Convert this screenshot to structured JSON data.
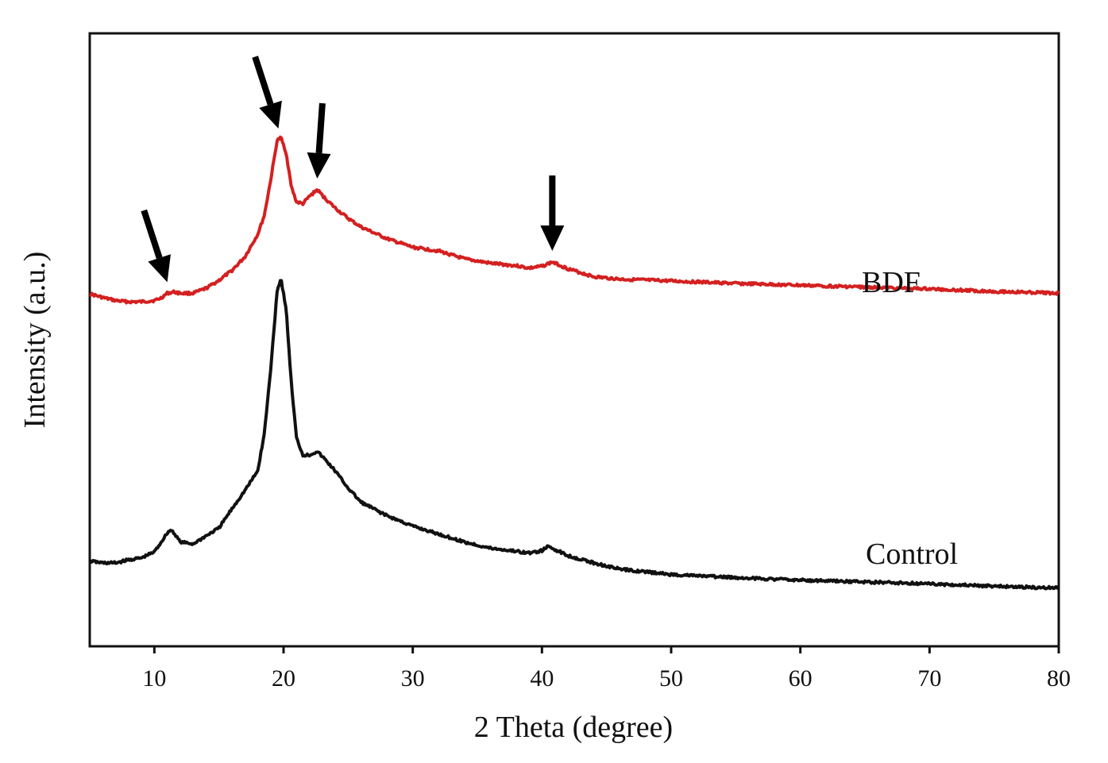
{
  "chart_data": {
    "type": "line",
    "title": "",
    "xlabel": "2 Theta (degree)",
    "ylabel": "Intensity (a.u.)",
    "xlim": [
      5,
      80
    ],
    "ylim": [
      0,
      100
    ],
    "xticks": [
      10,
      20,
      30,
      40,
      50,
      60,
      70,
      80
    ],
    "yticks_shown": false,
    "grid": false,
    "legend": "inline labels on right",
    "series": [
      {
        "name": "BDF",
        "color": "#d42020",
        "x": [
          5,
          6,
          7,
          8,
          9,
          10,
          10.5,
          11,
          11.5,
          12,
          13,
          14,
          15,
          16,
          17,
          18,
          18.5,
          19,
          19.5,
          19.8,
          20.2,
          20.6,
          21,
          21.5,
          22,
          22.6,
          23.2,
          24,
          25,
          26,
          28,
          30,
          32,
          34,
          36,
          38,
          39,
          40,
          40.8,
          42,
          44,
          46,
          50,
          55,
          60,
          65,
          70,
          75,
          80
        ],
        "y": [
          57.5,
          56.9,
          56.4,
          56.2,
          56.2,
          56.4,
          56.8,
          57.6,
          57.8,
          57.6,
          57.6,
          58.4,
          59.7,
          61.3,
          63.5,
          67.2,
          70.2,
          76.0,
          82.5,
          83.0,
          80.5,
          75.0,
          72.5,
          72.2,
          73.4,
          74.5,
          73.1,
          71.5,
          69.8,
          68.4,
          66.5,
          65.1,
          64.5,
          63.2,
          62.5,
          62.1,
          61.7,
          62.0,
          62.7,
          61.6,
          60.3,
          59.9,
          59.6,
          59.2,
          58.9,
          58.6,
          58.3,
          57.9,
          57.6
        ]
      },
      {
        "name": "Control",
        "color": "#111111",
        "x": [
          5,
          6,
          7,
          8,
          9,
          10,
          10.5,
          11,
          11.3,
          11.7,
          12,
          13,
          14,
          15,
          16,
          17,
          18,
          18.5,
          19,
          19.5,
          19.8,
          20.2,
          20.6,
          21,
          21.5,
          22,
          22.6,
          23.2,
          24,
          25,
          26,
          28,
          30,
          32,
          34,
          36,
          38,
          39,
          40,
          40.5,
          42,
          44,
          46,
          50,
          55,
          60,
          65,
          70,
          75,
          80
        ],
        "y": [
          13.9,
          13.6,
          13.6,
          14.1,
          14.4,
          15.4,
          16.9,
          18.5,
          19.0,
          18.0,
          17.0,
          16.7,
          18.0,
          19.3,
          22.4,
          25.4,
          28.6,
          34.5,
          45.0,
          58.0,
          60.0,
          55.0,
          43.0,
          34.0,
          31.2,
          31.2,
          31.8,
          30.5,
          28.6,
          25.8,
          23.5,
          21.3,
          19.6,
          18.3,
          17.0,
          16.0,
          15.5,
          15.2,
          15.6,
          16.3,
          14.8,
          13.6,
          12.6,
          11.7,
          11.2,
          10.8,
          10.5,
          10.2,
          9.8,
          9.5
        ]
      }
    ],
    "annotations": [
      {
        "type": "arrow",
        "target_x": 11,
        "series": "BDF"
      },
      {
        "type": "arrow",
        "target_x": 19.6,
        "series": "BDF"
      },
      {
        "type": "arrow",
        "target_x": 22.6,
        "series": "BDF"
      },
      {
        "type": "arrow",
        "target_x": 40.8,
        "series": "BDF"
      }
    ]
  }
}
